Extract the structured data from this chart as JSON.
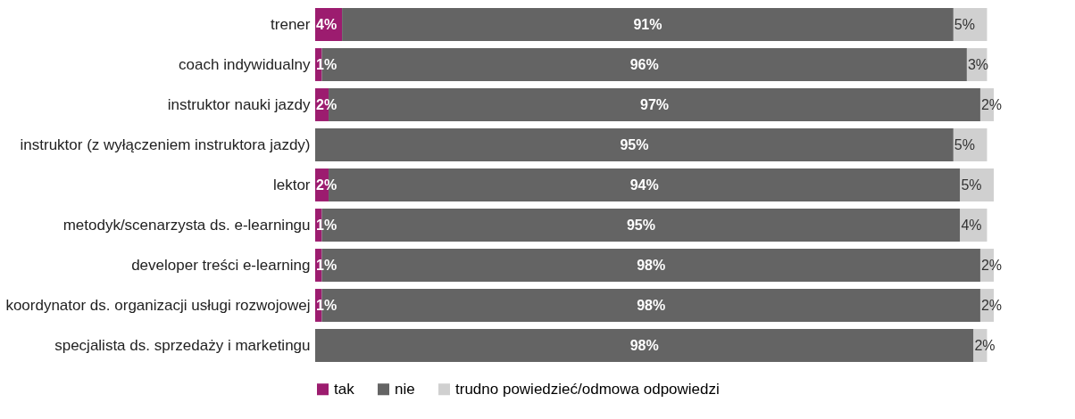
{
  "chart_data": {
    "type": "bar",
    "orientation": "horizontal",
    "stacked": true,
    "categories": [
      "trener",
      "coach indywidualny",
      "instruktor nauki jazdy",
      "instruktor (z wyłączeniem instruktora jazdy)",
      "lektor",
      "metodyk/scenarzysta ds. e-learningu",
      "developer treści e-learning",
      "koordynator ds. organizacji usługi rozwojowej",
      "specjalista ds. sprzedaży i marketingu"
    ],
    "series": [
      {
        "name": "tak",
        "color": "#9c1c6f",
        "values": [
          4,
          1,
          2,
          null,
          2,
          1,
          1,
          1,
          null
        ],
        "value_labels": [
          "4%",
          "1%",
          "2%",
          null,
          "2%",
          "1%",
          "1%",
          "1%",
          null
        ]
      },
      {
        "name": "nie",
        "color": "#646464",
        "values": [
          91,
          96,
          97,
          95,
          94,
          95,
          98,
          98,
          98
        ],
        "value_labels": [
          "91%",
          "96%",
          "97%",
          "95%",
          "94%",
          "95%",
          "98%",
          "98%",
          "98%"
        ]
      },
      {
        "name": "trudno powiedzieć/odmowa odpowiedzi",
        "color": "#d0d0d0",
        "values": [
          5,
          3,
          2,
          5,
          5,
          4,
          2,
          2,
          2
        ],
        "value_labels": [
          "5%",
          "3%",
          "2%",
          "5%",
          "5%",
          "4%",
          "2%",
          "2%",
          "2%"
        ]
      }
    ],
    "xlim": [
      0,
      101
    ],
    "tick_labels": "y",
    "legend": "bottom"
  }
}
